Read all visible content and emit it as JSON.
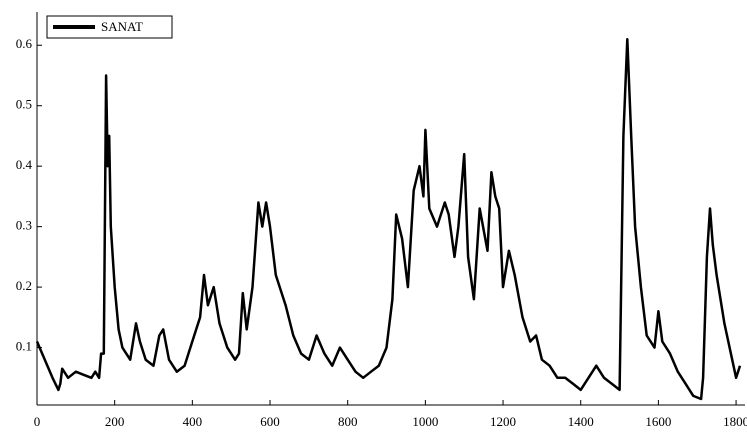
{
  "chart_data": {
    "type": "line",
    "x": [
      0,
      20,
      40,
      55,
      60,
      65,
      80,
      100,
      120,
      140,
      150,
      160,
      165,
      172,
      178,
      182,
      186,
      190,
      200,
      210,
      220,
      240,
      255,
      265,
      280,
      300,
      315,
      325,
      340,
      360,
      380,
      400,
      420,
      430,
      440,
      455,
      470,
      490,
      510,
      520,
      530,
      540,
      555,
      570,
      580,
      590,
      600,
      615,
      640,
      660,
      680,
      700,
      720,
      740,
      760,
      780,
      800,
      820,
      840,
      860,
      880,
      900,
      915,
      925,
      940,
      955,
      970,
      985,
      995,
      1000,
      1010,
      1030,
      1050,
      1060,
      1075,
      1085,
      1100,
      1110,
      1125,
      1140,
      1160,
      1170,
      1180,
      1190,
      1200,
      1215,
      1230,
      1250,
      1270,
      1285,
      1300,
      1320,
      1340,
      1360,
      1380,
      1400,
      1420,
      1440,
      1460,
      1480,
      1500,
      1510,
      1520,
      1530,
      1540,
      1555,
      1570,
      1590,
      1600,
      1610,
      1630,
      1650,
      1670,
      1690,
      1710,
      1715,
      1725,
      1733,
      1740,
      1750,
      1770,
      1790,
      1800,
      1810
    ],
    "series": [
      {
        "name": "SANAT",
        "color": "#000000",
        "values": [
          0.11,
          0.08,
          0.05,
          0.03,
          0.04,
          0.065,
          0.05,
          0.06,
          0.055,
          0.05,
          0.06,
          0.05,
          0.09,
          0.09,
          0.55,
          0.4,
          0.45,
          0.3,
          0.2,
          0.13,
          0.1,
          0.08,
          0.14,
          0.11,
          0.08,
          0.07,
          0.12,
          0.13,
          0.08,
          0.06,
          0.07,
          0.11,
          0.15,
          0.22,
          0.17,
          0.2,
          0.14,
          0.1,
          0.08,
          0.09,
          0.19,
          0.13,
          0.2,
          0.34,
          0.3,
          0.34,
          0.3,
          0.22,
          0.17,
          0.12,
          0.09,
          0.08,
          0.12,
          0.09,
          0.07,
          0.1,
          0.08,
          0.06,
          0.05,
          0.06,
          0.07,
          0.1,
          0.18,
          0.32,
          0.28,
          0.2,
          0.36,
          0.4,
          0.35,
          0.46,
          0.33,
          0.3,
          0.34,
          0.32,
          0.25,
          0.3,
          0.42,
          0.25,
          0.18,
          0.33,
          0.26,
          0.39,
          0.35,
          0.33,
          0.2,
          0.26,
          0.22,
          0.15,
          0.11,
          0.12,
          0.08,
          0.07,
          0.05,
          0.05,
          0.04,
          0.03,
          0.05,
          0.07,
          0.05,
          0.04,
          0.03,
          0.45,
          0.61,
          0.45,
          0.3,
          0.2,
          0.12,
          0.1,
          0.16,
          0.11,
          0.09,
          0.06,
          0.04,
          0.02,
          0.015,
          0.05,
          0.25,
          0.33,
          0.27,
          0.22,
          0.14,
          0.08,
          0.05,
          0.07
        ]
      }
    ],
    "xlim": [
      0,
      1823
    ],
    "xticks": [
      0,
      200,
      400,
      600,
      800,
      1000,
      1200,
      1400,
      1600,
      1800
    ],
    "ylim": [
      0.005,
      0.655
    ],
    "yticks": [
      0.1,
      0.2,
      0.3,
      0.4,
      0.5,
      0.6
    ],
    "legend": "upper-left"
  }
}
